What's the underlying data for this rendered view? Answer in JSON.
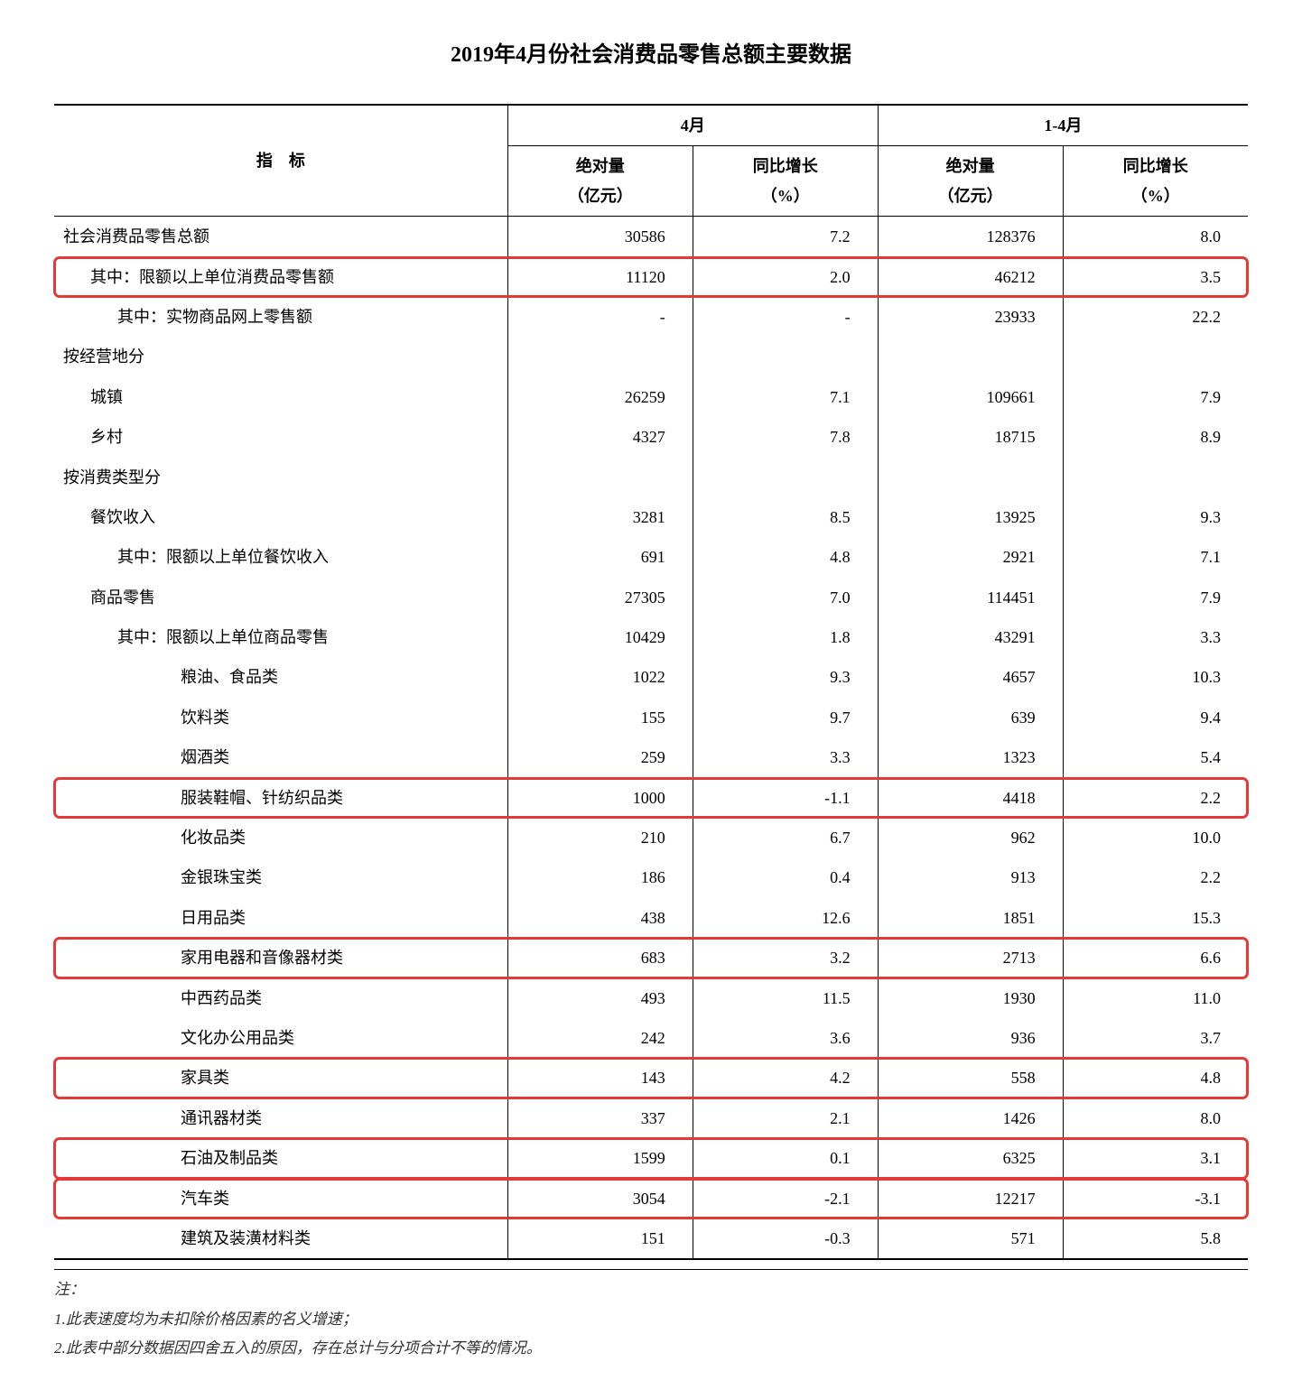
{
  "title": "2019年4月份社会消费品零售总额主要数据",
  "header": {
    "indicator": "指　标",
    "period1": "4月",
    "period2": "1-4月",
    "abs_label": "绝对量",
    "abs_unit": "（亿元）",
    "yoy_label": "同比增长",
    "yoy_unit": "（%）"
  },
  "rows": [
    {
      "indent": 0,
      "label": "社会消费品零售总额",
      "v1": "30586",
      "v2": "7.2",
      "v3": "128376",
      "v4": "8.0",
      "hl": false
    },
    {
      "indent": 1,
      "label": "其中：限额以上单位消费品零售额",
      "v1": "11120",
      "v2": "2.0",
      "v3": "46212",
      "v4": "3.5",
      "hl": true
    },
    {
      "indent": 2,
      "label": "其中：实物商品网上零售额",
      "v1": "-",
      "v2": "-",
      "v3": "23933",
      "v4": "22.2",
      "hl": false
    },
    {
      "indent": 0,
      "label": "按经营地分",
      "v1": "",
      "v2": "",
      "v3": "",
      "v4": "",
      "hl": false
    },
    {
      "indent": 1,
      "label": "城镇",
      "v1": "26259",
      "v2": "7.1",
      "v3": "109661",
      "v4": "7.9",
      "hl": false
    },
    {
      "indent": 1,
      "label": "乡村",
      "v1": "4327",
      "v2": "7.8",
      "v3": "18715",
      "v4": "8.9",
      "hl": false
    },
    {
      "indent": 0,
      "label": "按消费类型分",
      "v1": "",
      "v2": "",
      "v3": "",
      "v4": "",
      "hl": false
    },
    {
      "indent": 1,
      "label": "餐饮收入",
      "v1": "3281",
      "v2": "8.5",
      "v3": "13925",
      "v4": "9.3",
      "hl": false
    },
    {
      "indent": 2,
      "label": "其中：限额以上单位餐饮收入",
      "v1": "691",
      "v2": "4.8",
      "v3": "2921",
      "v4": "7.1",
      "hl": false
    },
    {
      "indent": 1,
      "label": "商品零售",
      "v1": "27305",
      "v2": "7.0",
      "v3": "114451",
      "v4": "7.9",
      "hl": false
    },
    {
      "indent": 2,
      "label": "其中：限额以上单位商品零售",
      "v1": "10429",
      "v2": "1.8",
      "v3": "43291",
      "v4": "3.3",
      "hl": false
    },
    {
      "indent": 3,
      "label": "粮油、食品类",
      "v1": "1022",
      "v2": "9.3",
      "v3": "4657",
      "v4": "10.3",
      "hl": false
    },
    {
      "indent": 3,
      "label": "饮料类",
      "v1": "155",
      "v2": "9.7",
      "v3": "639",
      "v4": "9.4",
      "hl": false
    },
    {
      "indent": 3,
      "label": "烟酒类",
      "v1": "259",
      "v2": "3.3",
      "v3": "1323",
      "v4": "5.4",
      "hl": false
    },
    {
      "indent": 3,
      "label": "服装鞋帽、针纺织品类",
      "v1": "1000",
      "v2": "-1.1",
      "v3": "4418",
      "v4": "2.2",
      "hl": true
    },
    {
      "indent": 3,
      "label": "化妆品类",
      "v1": "210",
      "v2": "6.7",
      "v3": "962",
      "v4": "10.0",
      "hl": false
    },
    {
      "indent": 3,
      "label": "金银珠宝类",
      "v1": "186",
      "v2": "0.4",
      "v3": "913",
      "v4": "2.2",
      "hl": false
    },
    {
      "indent": 3,
      "label": "日用品类",
      "v1": "438",
      "v2": "12.6",
      "v3": "1851",
      "v4": "15.3",
      "hl": false
    },
    {
      "indent": 3,
      "label": "家用电器和音像器材类",
      "v1": "683",
      "v2": "3.2",
      "v3": "2713",
      "v4": "6.6",
      "hl": true
    },
    {
      "indent": 3,
      "label": "中西药品类",
      "v1": "493",
      "v2": "11.5",
      "v3": "1930",
      "v4": "11.0",
      "hl": false
    },
    {
      "indent": 3,
      "label": "文化办公用品类",
      "v1": "242",
      "v2": "3.6",
      "v3": "936",
      "v4": "3.7",
      "hl": false
    },
    {
      "indent": 3,
      "label": "家具类",
      "v1": "143",
      "v2": "4.2",
      "v3": "558",
      "v4": "4.8",
      "hl": true
    },
    {
      "indent": 3,
      "label": "通讯器材类",
      "v1": "337",
      "v2": "2.1",
      "v3": "1426",
      "v4": "8.0",
      "hl": false
    },
    {
      "indent": 3,
      "label": "石油及制品类",
      "v1": "1599",
      "v2": "0.1",
      "v3": "6325",
      "v4": "3.1",
      "hl": true
    },
    {
      "indent": 3,
      "label": "汽车类",
      "v1": "3054",
      "v2": "-2.1",
      "v3": "12217",
      "v4": "-3.1",
      "hl": true
    },
    {
      "indent": 3,
      "label": "建筑及装潢材料类",
      "v1": "151",
      "v2": "-0.3",
      "v3": "571",
      "v4": "5.8",
      "hl": false
    }
  ],
  "notes": {
    "prefix": "注：",
    "n1": "1.此表速度均为未扣除价格因素的名义增速；",
    "n2": "2.此表中部分数据因四舍五入的原因，存在总计与分项合计不等的情况。"
  },
  "style": {
    "highlight_color": "#e53935",
    "background_color": "#ffffff",
    "text_color": "#000000",
    "font_family": "SimSun",
    "title_fontsize": 24,
    "body_fontsize": 18
  }
}
